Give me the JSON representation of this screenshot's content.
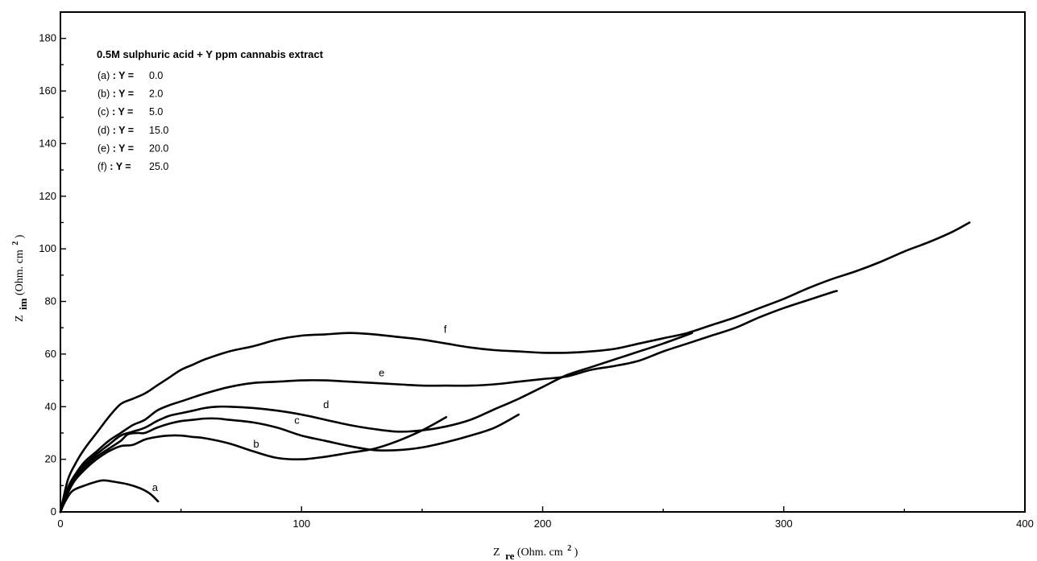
{
  "chart_data": {
    "type": "line",
    "xlim": [
      0,
      400
    ],
    "ylim": [
      0,
      190
    ],
    "x_ticks": [
      0,
      100,
      200,
      300,
      400
    ],
    "y_ticks": [
      0,
      20,
      40,
      60,
      80,
      100,
      120,
      140,
      160,
      180
    ],
    "x_tick_labels": [
      "0",
      "100",
      "200",
      "300",
      "400"
    ],
    "y_tick_labels": [
      "0",
      "20",
      "40",
      "60",
      "80",
      "100",
      "120",
      "140",
      "160",
      "180"
    ],
    "xlabel": {
      "main": "Z",
      "sub": "re",
      "unit": "(Ohm. cm",
      "sup": "2",
      "close": " )"
    },
    "ylabel": {
      "main": "Z",
      "sub": "im",
      "unit": "(Ohm. cm",
      "sup": "2",
      "close": " )"
    },
    "grid": false,
    "legend": {
      "placement": "top-left",
      "title": "0.5M sulphuric acid + Y ppm cannabis extract",
      "entries": [
        {
          "tag": "(a)",
          "sep": ": Y =",
          "value": "0.0"
        },
        {
          "tag": "(b)",
          "sep": ": Y =",
          "value": "2.0"
        },
        {
          "tag": "(c)",
          "sep": ": Y =",
          "value": "5.0"
        },
        {
          "tag": "(d)",
          "sep": ": Y =",
          "value": "15.0"
        },
        {
          "tag": "(e)",
          "sep": ": Y =",
          "value": "20.0"
        },
        {
          "tag": "(f)",
          "sep": ": Y =",
          "value": "25.0"
        }
      ]
    },
    "series": [
      {
        "name": "a",
        "label_at": [
          38,
          8
        ],
        "x": [
          0,
          2,
          5,
          10,
          15,
          18,
          22,
          28,
          33,
          37,
          40.5
        ],
        "y": [
          0,
          4,
          8,
          10,
          11.5,
          12,
          11.5,
          10.5,
          9,
          7,
          4
        ]
      },
      {
        "name": "b",
        "label_at": [
          80,
          24.5
        ],
        "x": [
          0,
          3,
          6,
          10,
          15,
          20,
          25,
          30,
          35,
          40,
          45,
          50,
          55,
          60,
          70,
          80,
          90,
          100,
          110,
          120,
          130,
          140,
          150,
          160
        ],
        "y": [
          0,
          7,
          12,
          16,
          20,
          23,
          25,
          25.5,
          27.5,
          28.5,
          29,
          29,
          28.5,
          28,
          26,
          23,
          20.5,
          20,
          21,
          22.5,
          24,
          27,
          31,
          36
        ]
      },
      {
        "name": "c",
        "label_at": [
          97,
          33.5
        ],
        "x": [
          0,
          3,
          6,
          10,
          15,
          20,
          25,
          28,
          32,
          35,
          40,
          45,
          50,
          55,
          60,
          65,
          70,
          80,
          90,
          100,
          110,
          120,
          130,
          140,
          150,
          160,
          170,
          180,
          190
        ],
        "y": [
          0,
          8,
          13,
          17,
          21,
          24,
          27,
          29.5,
          30,
          30,
          32,
          33.5,
          34.5,
          35,
          35.5,
          35.5,
          35,
          34,
          32,
          29,
          27,
          25,
          23.5,
          23.5,
          24.5,
          26.5,
          29,
          32,
          37
        ]
      },
      {
        "name": "d",
        "label_at": [
          109,
          39.5
        ],
        "x": [
          0,
          3,
          6,
          10,
          15,
          20,
          25,
          30,
          35,
          40,
          45,
          50,
          55,
          60,
          65,
          70,
          80,
          90,
          100,
          110,
          120,
          130,
          140,
          150,
          160,
          170,
          180,
          190,
          200,
          210,
          220,
          230,
          240,
          250,
          262
        ],
        "y": [
          0,
          9,
          14,
          18,
          22,
          25.5,
          29,
          30.5,
          32,
          34.5,
          36.5,
          37.5,
          38.5,
          39.5,
          40,
          40,
          39.5,
          38.5,
          37,
          35,
          33,
          31.5,
          30.5,
          31,
          32.5,
          35,
          39,
          43,
          47.5,
          52,
          55,
          58,
          61,
          64,
          68
        ]
      },
      {
        "name": "e",
        "label_at": [
          132,
          51.5
        ],
        "x": [
          0,
          3,
          6,
          10,
          15,
          20,
          25,
          30,
          35,
          40,
          45,
          50,
          60,
          70,
          80,
          90,
          100,
          110,
          120,
          130,
          140,
          150,
          160,
          170,
          180,
          190,
          200,
          210,
          220,
          230,
          240,
          250,
          260,
          270,
          280,
          290,
          300,
          310,
          320,
          322
        ],
        "y": [
          0,
          9,
          14,
          19,
          23,
          27,
          30,
          33,
          35,
          38.5,
          40.5,
          42,
          45,
          47.5,
          49,
          49.5,
          50,
          50,
          49.5,
          49,
          48.5,
          48,
          48,
          48,
          48.5,
          49.5,
          50.5,
          51.5,
          54,
          55.5,
          57.5,
          61,
          64,
          67,
          70,
          74,
          77.5,
          80.5,
          83.5,
          84
        ]
      },
      {
        "name": "f",
        "label_at": [
          159,
          68
        ],
        "x": [
          0,
          3,
          6,
          10,
          15,
          20,
          25,
          30,
          35,
          40,
          45,
          50,
          55,
          60,
          70,
          80,
          90,
          100,
          110,
          120,
          130,
          140,
          150,
          160,
          170,
          180,
          190,
          200,
          210,
          220,
          230,
          240,
          250,
          260,
          270,
          280,
          290,
          300,
          310,
          320,
          330,
          340,
          350,
          360,
          370,
          377
        ],
        "y": [
          0,
          12,
          18,
          24,
          30,
          36,
          41,
          43,
          45,
          48,
          51,
          54,
          56,
          58,
          61,
          63,
          65.5,
          67,
          67.5,
          68,
          67.5,
          66.5,
          65.5,
          64,
          62.5,
          61.5,
          61,
          60.5,
          60.5,
          61,
          62,
          64,
          66,
          68,
          71,
          74,
          77.5,
          81,
          85,
          88.5,
          91.5,
          95,
          99,
          102.5,
          106.5,
          110
        ]
      }
    ]
  }
}
